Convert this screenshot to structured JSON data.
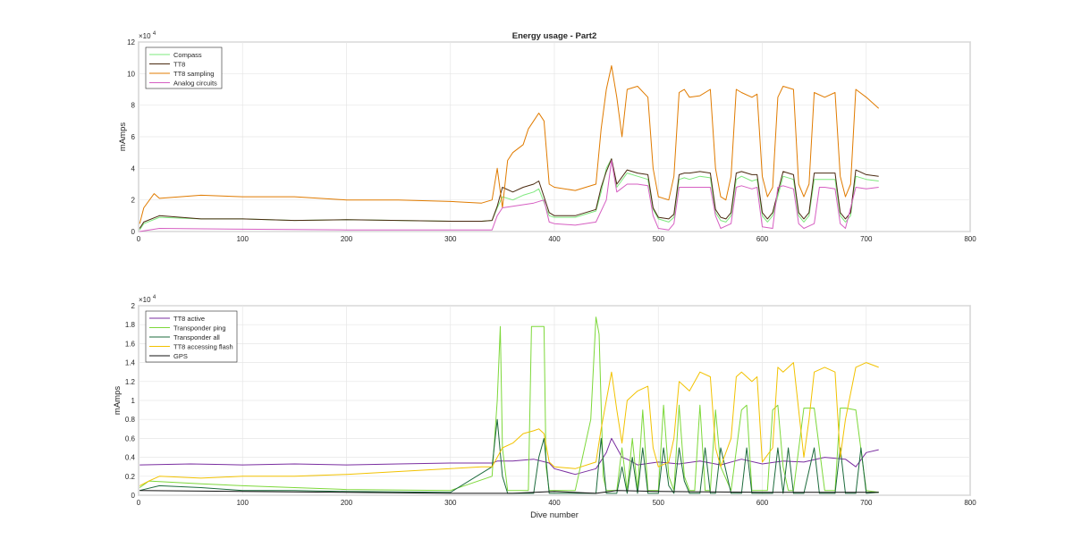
{
  "chart_data": [
    {
      "type": "line",
      "title": "Energy usage - Part2",
      "xlabel": "",
      "ylabel": "mAmps",
      "xlim": [
        0,
        800
      ],
      "ylim": [
        0,
        12
      ],
      "y_exponent_label": "×10",
      "y_exponent": "4",
      "xticks": [
        "0",
        "100",
        "200",
        "300",
        "400",
        "500",
        "600",
        "700",
        "800"
      ],
      "yticks": [
        "0",
        "2",
        "4",
        "6",
        "8",
        "10",
        "12"
      ],
      "grid": true,
      "legend_position": "top-left",
      "series": [
        {
          "name": "Compass",
          "color": "#7ee87e",
          "x": [
            1,
            5,
            20,
            60,
            100,
            150,
            200,
            250,
            300,
            330,
            340,
            345,
            350,
            360,
            370,
            380,
            385,
            395,
            400,
            420,
            440,
            445,
            450,
            455,
            460,
            470,
            480,
            490,
            495,
            500,
            510,
            515,
            520,
            525,
            530,
            540,
            550,
            555,
            560,
            565,
            570,
            575,
            580,
            590,
            595,
            600,
            605,
            610,
            620,
            630,
            635,
            640,
            645,
            650,
            660,
            670,
            675,
            680,
            685,
            690,
            700,
            712
          ],
          "y": [
            0.1,
            0.5,
            0.9,
            0.8,
            0.8,
            0.7,
            0.75,
            0.7,
            0.65,
            0.65,
            0.7,
            1.5,
            2.2,
            2.0,
            2.3,
            2.5,
            2.7,
            1.0,
            0.9,
            0.9,
            1.3,
            2.5,
            4.0,
            4.6,
            2.8,
            3.7,
            3.5,
            3.3,
            1.4,
            0.8,
            0.6,
            0.9,
            3.3,
            3.4,
            3.3,
            3.5,
            3.4,
            1.2,
            0.7,
            0.6,
            1.0,
            3.3,
            3.5,
            3.2,
            3.3,
            1.0,
            0.6,
            1.0,
            3.5,
            3.3,
            1.0,
            0.6,
            1.0,
            3.3,
            3.3,
            3.3,
            1.0,
            0.6,
            1.0,
            3.5,
            3.3,
            3.2
          ]
        },
        {
          "name": "TT8",
          "color": "#4a2a10",
          "x": [
            1,
            5,
            20,
            60,
            100,
            150,
            200,
            250,
            300,
            330,
            340,
            345,
            350,
            360,
            370,
            380,
            385,
            395,
            400,
            420,
            440,
            445,
            450,
            455,
            460,
            470,
            480,
            490,
            495,
            500,
            510,
            515,
            520,
            525,
            530,
            540,
            550,
            555,
            560,
            565,
            570,
            575,
            580,
            590,
            595,
            600,
            605,
            610,
            620,
            630,
            635,
            640,
            645,
            650,
            660,
            670,
            675,
            680,
            685,
            690,
            700,
            712
          ],
          "y": [
            0.2,
            0.6,
            1.0,
            0.8,
            0.8,
            0.7,
            0.75,
            0.7,
            0.65,
            0.65,
            0.7,
            1.6,
            2.8,
            2.5,
            2.8,
            3.0,
            3.2,
            1.2,
            1.0,
            1.0,
            1.4,
            2.8,
            3.8,
            4.6,
            3.0,
            3.9,
            3.7,
            3.6,
            1.5,
            0.9,
            0.8,
            1.1,
            3.6,
            3.7,
            3.7,
            3.8,
            3.7,
            1.4,
            0.9,
            0.8,
            1.2,
            3.7,
            3.8,
            3.6,
            3.6,
            1.2,
            0.8,
            1.2,
            3.8,
            3.6,
            1.2,
            0.8,
            1.2,
            3.7,
            3.7,
            3.7,
            1.2,
            0.8,
            1.2,
            3.9,
            3.6,
            3.5
          ]
        },
        {
          "name": "TT8 sampling",
          "color": "#e07b00",
          "x": [
            1,
            5,
            15,
            20,
            60,
            100,
            150,
            200,
            250,
            300,
            330,
            340,
            345,
            350,
            355,
            360,
            370,
            375,
            380,
            385,
            390,
            395,
            400,
            420,
            440,
            445,
            450,
            455,
            460,
            465,
            470,
            480,
            490,
            495,
            500,
            510,
            515,
            520,
            525,
            530,
            540,
            550,
            555,
            560,
            565,
            570,
            575,
            580,
            590,
            595,
            600,
            605,
            610,
            615,
            620,
            630,
            635,
            640,
            645,
            650,
            660,
            670,
            675,
            680,
            685,
            690,
            700,
            712
          ],
          "y": [
            0.5,
            1.5,
            2.4,
            2.1,
            2.3,
            2.2,
            2.2,
            2.0,
            2.0,
            1.9,
            1.8,
            2.0,
            4.0,
            1.5,
            4.5,
            5.0,
            5.5,
            6.5,
            7.0,
            7.5,
            7.0,
            3.0,
            2.8,
            2.6,
            3.0,
            6.5,
            9.0,
            10.5,
            8.5,
            6.0,
            9.0,
            9.2,
            8.5,
            4.0,
            2.2,
            2.0,
            3.5,
            8.8,
            9.0,
            8.5,
            8.6,
            9.0,
            4.0,
            2.2,
            2.0,
            3.5,
            9.0,
            8.8,
            8.5,
            8.7,
            3.5,
            2.2,
            2.8,
            8.5,
            9.2,
            9.0,
            3.0,
            2.2,
            3.0,
            8.8,
            8.5,
            8.8,
            3.5,
            2.2,
            3.0,
            9.0,
            8.5,
            7.8
          ]
        },
        {
          "name": "Analog circuits",
          "color": "#d65fc2",
          "x": [
            1,
            20,
            100,
            200,
            300,
            340,
            345,
            350,
            360,
            380,
            390,
            395,
            400,
            420,
            440,
            450,
            455,
            460,
            470,
            480,
            490,
            495,
            500,
            510,
            515,
            520,
            530,
            550,
            555,
            560,
            570,
            575,
            580,
            590,
            595,
            600,
            610,
            615,
            620,
            630,
            635,
            640,
            650,
            655,
            660,
            670,
            675,
            680,
            690,
            700,
            712
          ],
          "y": [
            0,
            0.2,
            0.15,
            0.1,
            0.1,
            0.1,
            1.0,
            1.5,
            1.6,
            1.8,
            2.0,
            0.6,
            0.5,
            0.4,
            0.6,
            2.0,
            4.5,
            2.5,
            3.0,
            3.0,
            2.9,
            1.0,
            0.2,
            0.1,
            0.5,
            2.8,
            2.8,
            2.8,
            1.0,
            0.2,
            0.5,
            2.8,
            2.9,
            2.7,
            2.8,
            0.3,
            0.2,
            2.8,
            2.9,
            2.7,
            0.5,
            0.2,
            0.5,
            2.8,
            2.8,
            2.7,
            0.5,
            0.2,
            2.8,
            2.7,
            2.8
          ]
        }
      ]
    },
    {
      "type": "line",
      "title": "",
      "xlabel": "Dive number",
      "ylabel": "mAmps",
      "xlim": [
        0,
        800
      ],
      "ylim": [
        0,
        2
      ],
      "y_exponent_label": "×10",
      "y_exponent": "4",
      "xticks": [
        "0",
        "100",
        "200",
        "300",
        "400",
        "500",
        "600",
        "700",
        "800"
      ],
      "yticks": [
        "0",
        "0.2",
        "0.4",
        "0.6",
        "0.8",
        "1",
        "1.2",
        "1.4",
        "1.6",
        "1.8",
        "2"
      ],
      "grid": true,
      "legend_position": "top-left",
      "series": [
        {
          "name": "TT8 active",
          "color": "#7a2ea0",
          "x": [
            1,
            50,
            100,
            150,
            200,
            250,
            300,
            340,
            345,
            350,
            360,
            380,
            395,
            400,
            420,
            440,
            450,
            455,
            460,
            465,
            470,
            480,
            500,
            520,
            540,
            560,
            580,
            600,
            620,
            640,
            660,
            680,
            690,
            700,
            712
          ],
          "y": [
            0.32,
            0.33,
            0.32,
            0.33,
            0.32,
            0.33,
            0.34,
            0.34,
            0.36,
            0.36,
            0.36,
            0.38,
            0.34,
            0.28,
            0.22,
            0.28,
            0.45,
            0.6,
            0.5,
            0.4,
            0.38,
            0.32,
            0.35,
            0.33,
            0.36,
            0.32,
            0.38,
            0.33,
            0.36,
            0.35,
            0.4,
            0.38,
            0.3,
            0.45,
            0.48
          ]
        },
        {
          "name": "Transponder ping",
          "color": "#7dd83a",
          "x": [
            1,
            10,
            60,
            100,
            150,
            200,
            300,
            340,
            345,
            348,
            350,
            355,
            360,
            375,
            378,
            380,
            390,
            392,
            395,
            400,
            420,
            435,
            440,
            443,
            447,
            450,
            460,
            465,
            470,
            475,
            480,
            485,
            490,
            500,
            505,
            510,
            515,
            520,
            525,
            530,
            535,
            540,
            545,
            550,
            555,
            560,
            570,
            580,
            585,
            590,
            600,
            605,
            610,
            615,
            620,
            625,
            630,
            640,
            650,
            660,
            670,
            675,
            680,
            690,
            700,
            712
          ],
          "y": [
            0.08,
            0.15,
            0.12,
            0.1,
            0.08,
            0.06,
            0.05,
            0.2,
            1.0,
            1.78,
            0.5,
            0.05,
            0.05,
            0.05,
            1.78,
            1.78,
            1.78,
            0.3,
            0.05,
            0.05,
            0.05,
            0.8,
            1.88,
            1.7,
            0.2,
            0.05,
            0.05,
            0.5,
            0.05,
            0.6,
            0.05,
            0.9,
            0.05,
            0.05,
            0.95,
            0.2,
            0.05,
            0.95,
            0.2,
            0.05,
            0.05,
            0.95,
            0.05,
            0.05,
            0.9,
            0.3,
            0.05,
            0.9,
            0.95,
            0.05,
            0.05,
            0.05,
            0.9,
            0.95,
            0.3,
            0.05,
            0.05,
            0.92,
            0.92,
            0.05,
            0.05,
            0.92,
            0.92,
            0.9,
            0.05,
            0.03
          ]
        },
        {
          "name": "Transponder all",
          "color": "#1c6b3c",
          "x": [
            1,
            20,
            60,
            100,
            150,
            200,
            300,
            340,
            345,
            350,
            355,
            380,
            385,
            390,
            395,
            440,
            445,
            450,
            460,
            465,
            470,
            475,
            480,
            485,
            490,
            500,
            505,
            510,
            515,
            520,
            525,
            530,
            540,
            545,
            550,
            555,
            560,
            570,
            580,
            585,
            590,
            600,
            610,
            615,
            620,
            625,
            630,
            640,
            650,
            655,
            660,
            670,
            675,
            680,
            690,
            695,
            700,
            712
          ],
          "y": [
            0.05,
            0.1,
            0.08,
            0.05,
            0.05,
            0.04,
            0.03,
            0.3,
            0.8,
            0.2,
            0.02,
            0.02,
            0.4,
            0.6,
            0.02,
            0.02,
            0.6,
            0.02,
            0.02,
            0.3,
            0.02,
            0.4,
            0.02,
            0.5,
            0.02,
            0.02,
            0.5,
            0.1,
            0.02,
            0.5,
            0.15,
            0.02,
            0.02,
            0.5,
            0.02,
            0.02,
            0.5,
            0.02,
            0.02,
            0.5,
            0.02,
            0.02,
            0.02,
            0.5,
            0.02,
            0.5,
            0.02,
            0.02,
            0.5,
            0.02,
            0.02,
            0.02,
            0.5,
            0.02,
            0.02,
            0.5,
            0.02,
            0.03
          ]
        },
        {
          "name": "TT8 accessing flash",
          "color": "#f2c200",
          "x": [
            1,
            10,
            20,
            60,
            100,
            150,
            200,
            250,
            300,
            330,
            340,
            345,
            350,
            360,
            370,
            380,
            385,
            390,
            395,
            400,
            420,
            440,
            445,
            450,
            455,
            460,
            465,
            470,
            480,
            490,
            495,
            500,
            510,
            515,
            520,
            530,
            540,
            550,
            555,
            560,
            570,
            575,
            580,
            590,
            595,
            600,
            610,
            615,
            620,
            630,
            640,
            645,
            650,
            660,
            670,
            675,
            680,
            690,
            700,
            712
          ],
          "y": [
            0.1,
            0.15,
            0.2,
            0.18,
            0.2,
            0.2,
            0.22,
            0.25,
            0.28,
            0.3,
            0.3,
            0.4,
            0.5,
            0.55,
            0.65,
            0.68,
            0.7,
            0.65,
            0.35,
            0.3,
            0.28,
            0.35,
            0.7,
            1.0,
            1.3,
            0.9,
            0.55,
            1.0,
            1.1,
            1.15,
            0.5,
            0.3,
            0.35,
            0.6,
            1.2,
            1.1,
            1.3,
            1.25,
            0.5,
            0.3,
            0.6,
            1.25,
            1.3,
            1.2,
            1.25,
            0.35,
            0.5,
            1.35,
            1.3,
            1.4,
            0.4,
            0.8,
            1.3,
            1.35,
            1.3,
            0.4,
            0.8,
            1.35,
            1.4,
            1.35
          ]
        },
        {
          "name": "GPS",
          "color": "#111111",
          "x": [
            1,
            300,
            350,
            360,
            400,
            440,
            460,
            500,
            600,
            700,
            712
          ],
          "y": [
            0.05,
            0.02,
            0.02,
            0.02,
            0.04,
            0.02,
            0.05,
            0.04,
            0.03,
            0.03,
            0.03
          ]
        }
      ]
    }
  ]
}
